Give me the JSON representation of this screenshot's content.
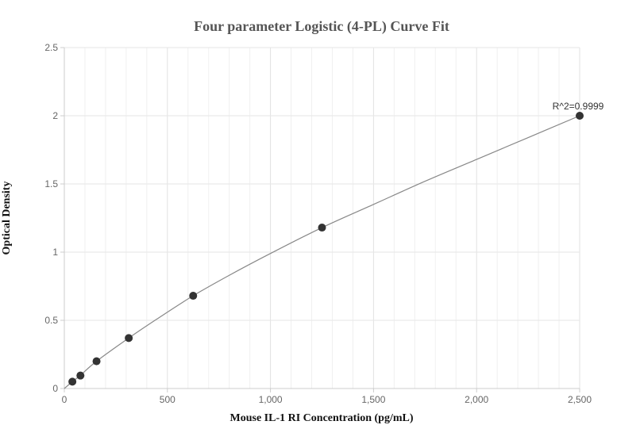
{
  "chart_data": {
    "type": "scatter",
    "title": "Four parameter Logistic (4-PL) Curve Fit",
    "xlabel": "Mouse IL-1 RI Concentration (pg/mL)",
    "ylabel": "Optical Density",
    "xlim": [
      0,
      2500
    ],
    "ylim": [
      0,
      2.5
    ],
    "x_ticks": [
      0,
      500,
      1000,
      1500,
      2000,
      2500
    ],
    "x_tick_labels": [
      "0",
      "500",
      "1,000",
      "1,500",
      "2,000",
      "2,500"
    ],
    "y_ticks": [
      0,
      0.5,
      1,
      1.5,
      2,
      2.5
    ],
    "y_tick_labels": [
      "0",
      "0.5",
      "1",
      "1.5",
      "2",
      "2.5"
    ],
    "grid": true,
    "points": [
      {
        "x": 39.06,
        "y": 0.05
      },
      {
        "x": 78.13,
        "y": 0.095
      },
      {
        "x": 156.25,
        "y": 0.2
      },
      {
        "x": 312.5,
        "y": 0.37
      },
      {
        "x": 625,
        "y": 0.68
      },
      {
        "x": 1250,
        "y": 1.18
      },
      {
        "x": 2500,
        "y": 2.0
      }
    ],
    "fit_curve": [
      {
        "x": 0,
        "y": 0.0
      },
      {
        "x": 39.06,
        "y": 0.05
      },
      {
        "x": 78.13,
        "y": 0.097
      },
      {
        "x": 156.25,
        "y": 0.2
      },
      {
        "x": 312.5,
        "y": 0.37
      },
      {
        "x": 450,
        "y": 0.51
      },
      {
        "x": 625,
        "y": 0.68
      },
      {
        "x": 800,
        "y": 0.83
      },
      {
        "x": 1000,
        "y": 0.99
      },
      {
        "x": 1250,
        "y": 1.18
      },
      {
        "x": 1500,
        "y": 1.35
      },
      {
        "x": 1750,
        "y": 1.52
      },
      {
        "x": 2000,
        "y": 1.68
      },
      {
        "x": 2250,
        "y": 1.84
      },
      {
        "x": 2500,
        "y": 2.0
      }
    ],
    "annotation": {
      "text": "R^2=0.9999",
      "x": 2500,
      "y": 2.0
    },
    "colors": {
      "point": "#333333",
      "curve": "#888888",
      "grid": "#e6e6e6",
      "axis": "#cccccc"
    }
  }
}
